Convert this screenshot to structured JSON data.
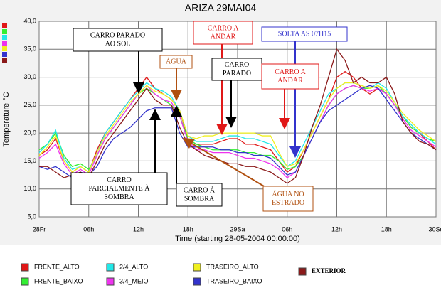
{
  "chart_data": {
    "type": "line",
    "title": "ARIZA 29MAI04",
    "x_label": "Time (starting 28-05-2004 00:00:00)",
    "y_label": "Temperature °C",
    "x": [
      0,
      1,
      2,
      3,
      4,
      5,
      6,
      7,
      8,
      9,
      10,
      11,
      12,
      13,
      14,
      15,
      16,
      17,
      18,
      19,
      20,
      21,
      22,
      23,
      24,
      25,
      26,
      27,
      28,
      29,
      30,
      31,
      32,
      33,
      34,
      35,
      36,
      37,
      38,
      39,
      40,
      41,
      42,
      43,
      44,
      45,
      46,
      47,
      48
    ],
    "xlim": [
      0,
      48
    ],
    "xticks": [
      {
        "value": 0,
        "label": "28Fr"
      },
      {
        "value": 6,
        "label": "06h"
      },
      {
        "value": 12,
        "label": "12h"
      },
      {
        "value": 18,
        "label": "18h"
      },
      {
        "value": 24,
        "label": "29Sa"
      },
      {
        "value": 30,
        "label": "06h"
      },
      {
        "value": 36,
        "label": "12h"
      },
      {
        "value": 42,
        "label": "18h"
      },
      {
        "value": 48,
        "label": "30Su"
      }
    ],
    "ylim": [
      5,
      40
    ],
    "yticks": [
      {
        "value": 5,
        "label": "5,0"
      },
      {
        "value": 10,
        "label": "10,0"
      },
      {
        "value": 15,
        "label": "15,0"
      },
      {
        "value": 20,
        "label": "20,0"
      },
      {
        "value": 25,
        "label": "25,0"
      },
      {
        "value": 30,
        "label": "30,0"
      },
      {
        "value": 35,
        "label": "35,0"
      },
      {
        "value": 40,
        "label": "40,0"
      }
    ],
    "grid": true,
    "series": [
      {
        "name": "FRENTE_ALTO",
        "color": "#e01818",
        "values": [
          16,
          17,
          19,
          15,
          13,
          14,
          13,
          17,
          20,
          22,
          24,
          26,
          28,
          30,
          28,
          27,
          26,
          24,
          19,
          18,
          18,
          18,
          18.5,
          19,
          19,
          18,
          18,
          17.5,
          17,
          15,
          13,
          14,
          17,
          20,
          23,
          26,
          30,
          31,
          30,
          28,
          27,
          28,
          27,
          25,
          23,
          21,
          20,
          18.5,
          17
        ]
      },
      {
        "name": "FRENTE_BAIXO",
        "color": "#33ee33",
        "values": [
          17,
          18,
          20,
          16,
          14,
          14.5,
          13.5,
          16,
          19,
          21,
          23,
          25,
          27,
          28,
          27,
          26,
          25,
          23,
          19,
          18,
          17.5,
          17,
          17,
          17,
          17,
          16.5,
          16.5,
          16,
          16,
          15,
          13.5,
          14,
          16,
          19,
          22,
          25,
          27,
          28,
          28.5,
          28,
          28,
          28.5,
          27,
          25,
          23,
          21,
          20,
          19,
          18.5
        ]
      },
      {
        "name": "2/4_ALTO",
        "color": "#22e8e8",
        "values": [
          16.5,
          18,
          20.5,
          15.5,
          13.5,
          14,
          13,
          16.5,
          20,
          22,
          24,
          26,
          27.5,
          29,
          28,
          27.5,
          26.5,
          24,
          19.5,
          18.5,
          18.5,
          18.5,
          19,
          19.5,
          19.5,
          19,
          19,
          18.5,
          18,
          16,
          14,
          15,
          18,
          21,
          24,
          27,
          28,
          29,
          29,
          28.5,
          28,
          29,
          28,
          25.5,
          23,
          21.5,
          20,
          19,
          18
        ]
      },
      {
        "name": "3/4_MEIO",
        "color": "#ee33ee",
        "values": [
          15.5,
          16.5,
          18,
          14.5,
          12.5,
          13.5,
          12.5,
          16,
          19,
          21,
          23,
          25,
          27,
          28.5,
          27,
          26,
          25.5,
          23,
          18.5,
          17,
          17,
          16.5,
          16.5,
          16.5,
          16,
          15.5,
          15.5,
          15,
          14.5,
          13.5,
          12,
          13,
          16,
          19,
          22,
          25,
          27,
          28,
          28.5,
          28,
          27.5,
          28,
          27,
          25,
          22.5,
          20.5,
          19.5,
          18.5,
          17.5
        ]
      },
      {
        "name": "TRASEIRO_ALTO",
        "color": "#f0f020",
        "values": [
          16,
          17.5,
          19.5,
          15,
          13,
          14,
          13,
          16.5,
          19.5,
          21.5,
          23.5,
          25.5,
          27,
          28.5,
          27.5,
          27,
          26,
          24,
          19.5,
          19,
          19.5,
          19.5,
          20,
          20,
          20,
          20,
          20,
          19.5,
          19.5,
          16.5,
          14,
          14.5,
          17,
          20,
          23,
          26,
          28,
          29,
          29,
          28.5,
          28,
          28.5,
          27.5,
          25.5,
          23.5,
          22,
          20.5,
          19.5,
          18.5
        ]
      },
      {
        "name": "TRASEIRO_BAIXO",
        "color": "#3333cc",
        "values": [
          14,
          13.5,
          14,
          13,
          12,
          13,
          12.5,
          14,
          17,
          19,
          20,
          21,
          22.5,
          24,
          24.5,
          24.5,
          24.5,
          20,
          17.5,
          17.5,
          17.5,
          17.5,
          17,
          17,
          16.5,
          16.5,
          16,
          16,
          15.5,
          14,
          12.5,
          13,
          16,
          19,
          22,
          24,
          25,
          26,
          27,
          28,
          28.5,
          28,
          26,
          24,
          22,
          20,
          19,
          18,
          17
        ]
      },
      {
        "name": "EXTERIOR",
        "color": "#8b1a1a",
        "values": [
          14,
          14,
          13,
          12,
          12.5,
          13,
          12,
          15,
          18,
          20,
          22,
          24,
          26,
          28,
          26,
          25,
          25,
          21,
          18,
          17,
          16,
          15.5,
          15,
          14.5,
          14.5,
          14,
          14,
          13.5,
          13,
          12,
          11,
          12,
          16,
          21,
          25,
          30,
          35,
          33,
          29,
          30,
          29,
          29,
          30,
          27,
          22,
          20,
          18.5,
          18,
          17
        ]
      }
    ],
    "annotations": [
      {
        "lines": [
          "CARRO  PARADO",
          "AO SOL"
        ],
        "color": "#000000"
      },
      {
        "lines": [
          "ÁGUA"
        ],
        "color": "#b05010"
      },
      {
        "lines": [
          "CARRO A",
          "ANDAR"
        ],
        "color": "#e01818"
      },
      {
        "lines": [
          "SOLTA AS 07H15"
        ],
        "color": "#3333cc"
      },
      {
        "lines": [
          "CARRO",
          "PARADO"
        ],
        "color": "#000000"
      },
      {
        "lines": [
          "CARRO A",
          "ANDAR"
        ],
        "color": "#e01818"
      },
      {
        "lines": [
          "CARRO",
          "PARCIALMENTE À",
          "SOMBRA"
        ],
        "color": "#000000"
      },
      {
        "lines": [
          "CARRO À",
          "SOMBRA"
        ],
        "color": "#000000"
      },
      {
        "lines": [
          "ÁGUA NO",
          "ESTRADO"
        ],
        "color": "#b05010"
      }
    ]
  }
}
